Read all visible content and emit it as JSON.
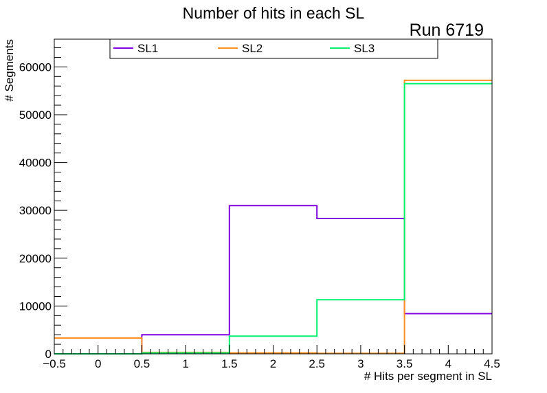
{
  "chart_data": {
    "type": "histogram-step",
    "title": "Number of hits in each SL",
    "annotation": "Run 6719",
    "xlabel": "# Hits per segment in SL",
    "ylabel": "# Segments",
    "xlim": [
      -0.5,
      4.5
    ],
    "ylim": [
      0,
      65800
    ],
    "x_ticks": [
      -0.5,
      0,
      0.5,
      1,
      1.5,
      2,
      2.5,
      3,
      3.5,
      4,
      4.5
    ],
    "x_tick_labels": [
      "−0.5",
      "0",
      "0.5",
      "1",
      "1.5",
      "2",
      "2.5",
      "3",
      "3.5",
      "4",
      "4.5"
    ],
    "y_ticks": [
      0,
      10000,
      20000,
      30000,
      40000,
      50000,
      60000
    ],
    "y_tick_labels": [
      "0",
      "10000",
      "20000",
      "30000",
      "40000",
      "50000",
      "60000"
    ],
    "bin_edges": [
      -0.5,
      0.5,
      1.5,
      2.5,
      3.5,
      4.5
    ],
    "legend_position": "top",
    "series": [
      {
        "name": "SL1",
        "color": "#8000e0",
        "values": [
          0,
          4000,
          31000,
          28300,
          8400
        ]
      },
      {
        "name": "SL2",
        "color": "#ff9020",
        "values": [
          3300,
          300,
          200,
          100,
          57200
        ]
      },
      {
        "name": "SL3",
        "color": "#00f070",
        "values": [
          0,
          200,
          3700,
          11300,
          56500
        ]
      }
    ]
  }
}
